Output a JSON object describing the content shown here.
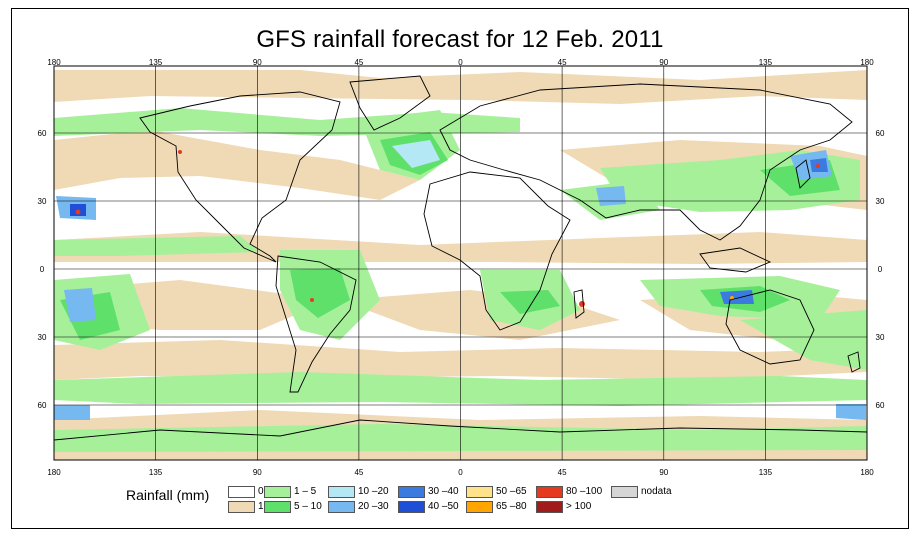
{
  "title": "GFS rainfall forecast for 12 Feb. 2011",
  "axes": {
    "top_lon": [
      "180",
      "135",
      "90",
      "45",
      "0",
      "45",
      "90",
      "135",
      "180"
    ],
    "bottom_lon": [
      "180",
      "135",
      "90",
      "45",
      "0",
      "45",
      "90",
      "135",
      "180"
    ],
    "left_lat": [
      "60",
      "30",
      "0",
      "30",
      "60"
    ],
    "right_lat": [
      "60",
      "30",
      "0",
      "30",
      "60"
    ]
  },
  "legend": {
    "title": "Rainfall (mm)",
    "classes": [
      {
        "label": "0",
        "color": "#ffffff"
      },
      {
        "label": "1",
        "color": "#f0d9b5"
      },
      {
        "label": "1 – 5",
        "color": "#a6f09a"
      },
      {
        "label": "5 – 10",
        "color": "#5fe06b"
      },
      {
        "label": "10 –20",
        "color": "#b5e8f5"
      },
      {
        "label": "20 –30",
        "color": "#76b8f0"
      },
      {
        "label": "30 –40",
        "color": "#3b7be0"
      },
      {
        "label": "40 –50",
        "color": "#1f4fd6"
      },
      {
        "label": "50 –65",
        "color": "#ffe28a"
      },
      {
        "label": "65 –80",
        "color": "#ffa500"
      },
      {
        "label": "80 –100",
        "color": "#e63a1e"
      },
      {
        "label": "> 100",
        "color": "#a01c1c"
      },
      {
        "label": "nodata",
        "color": "#d6d6d6"
      }
    ]
  }
}
